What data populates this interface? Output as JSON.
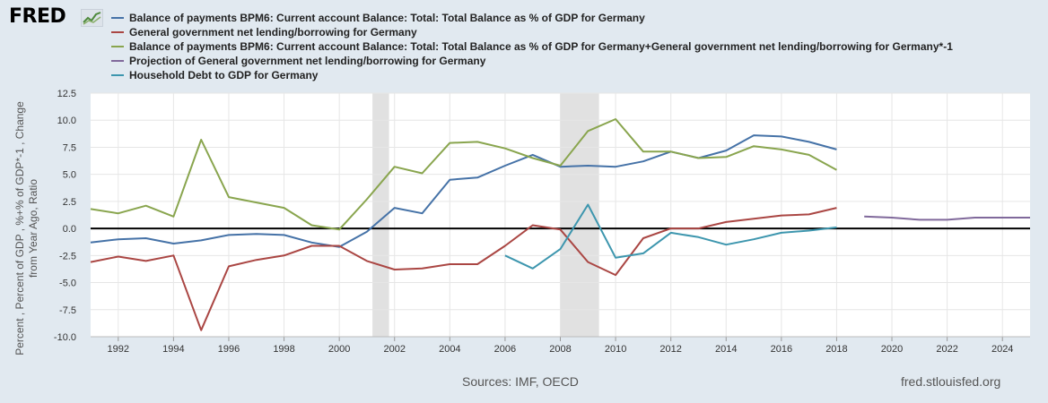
{
  "logo": {
    "text": "FRED"
  },
  "sources": "Sources: IMF, OECD",
  "site": "fred.stlouisfed.org",
  "chart_data": {
    "type": "line",
    "ylabel": "Percent , Percent of GDP , %+% of GDP*-1 , Change from Year Ago, Ratio",
    "xlim": [
      1991,
      2025
    ],
    "ylim": [
      -10.0,
      12.5
    ],
    "yticks": [
      12.5,
      10.0,
      7.5,
      5.0,
      2.5,
      0.0,
      -2.5,
      -5.0,
      -7.5,
      -10.0
    ],
    "ytick_labels": [
      "12.5",
      "10.0",
      "7.5",
      "5.0",
      "2.5",
      "0.0",
      "-2.5",
      "-5.0",
      "-7.5",
      "-10.0"
    ],
    "xticks": [
      1992,
      1994,
      1996,
      1998,
      2000,
      2002,
      2004,
      2006,
      2008,
      2010,
      2012,
      2014,
      2016,
      2018,
      2020,
      2022,
      2024
    ],
    "xtick_labels": [
      "1992",
      "1994",
      "1996",
      "1998",
      "2000",
      "2002",
      "2004",
      "2006",
      "2008",
      "2010",
      "2012",
      "2014",
      "2016",
      "2018",
      "2020",
      "2022",
      "2024"
    ],
    "recessions": [
      [
        2001.2,
        2001.8
      ],
      [
        2008.0,
        2009.4
      ]
    ],
    "series": [
      {
        "name": "Balance of payments BPM6: Current account Balance: Total: Total Balance as % of GDP for Germany",
        "color": "#4572a7",
        "x": [
          1991,
          1992,
          1993,
          1994,
          1995,
          1996,
          1997,
          1998,
          1999,
          2000,
          2001,
          2002,
          2003,
          2004,
          2005,
          2006,
          2007,
          2008,
          2009,
          2010,
          2011,
          2012,
          2013,
          2014,
          2015,
          2016,
          2017,
          2018
        ],
        "y": [
          -1.3,
          -1.0,
          -0.9,
          -1.4,
          -1.1,
          -0.6,
          -0.5,
          -0.6,
          -1.3,
          -1.7,
          -0.3,
          1.9,
          1.4,
          4.5,
          4.7,
          5.8,
          6.8,
          5.7,
          5.8,
          5.7,
          6.2,
          7.1,
          6.5,
          7.2,
          8.6,
          8.5,
          8.0,
          7.3
        ]
      },
      {
        "name": "General government net lending/borrowing for Germany",
        "color": "#aa4643",
        "x": [
          1991,
          1992,
          1993,
          1994,
          1995,
          1996,
          1997,
          1998,
          1999,
          2000,
          2001,
          2002,
          2003,
          2004,
          2005,
          2006,
          2007,
          2008,
          2009,
          2010,
          2011,
          2012,
          2013,
          2014,
          2015,
          2016,
          2017,
          2018
        ],
        "y": [
          -3.1,
          -2.6,
          -3.0,
          -2.5,
          -9.4,
          -3.5,
          -2.9,
          -2.5,
          -1.6,
          -1.6,
          -3.0,
          -3.8,
          -3.7,
          -3.3,
          -3.3,
          -1.6,
          0.3,
          -0.1,
          -3.1,
          -4.3,
          -0.9,
          0.0,
          0.0,
          0.6,
          0.9,
          1.2,
          1.3,
          1.9
        ]
      },
      {
        "name": "Balance of payments BPM6: Current account Balance: Total: Total Balance as % of GDP for Germany+General government net lending/borrowing for Germany*-1",
        "color": "#89a54e",
        "x": [
          1991,
          1992,
          1993,
          1994,
          1995,
          1996,
          1997,
          1998,
          1999,
          2000,
          2001,
          2002,
          2003,
          2004,
          2005,
          2006,
          2007,
          2008,
          2009,
          2010,
          2011,
          2012,
          2013,
          2014,
          2015,
          2016,
          2017,
          2018
        ],
        "y": [
          1.8,
          1.4,
          2.1,
          1.1,
          8.2,
          2.9,
          2.4,
          1.9,
          0.3,
          -0.1,
          2.7,
          5.7,
          5.1,
          7.9,
          8.0,
          7.4,
          6.5,
          5.8,
          9.0,
          10.1,
          7.1,
          7.1,
          6.5,
          6.6,
          7.6,
          7.3,
          6.8,
          5.4
        ]
      },
      {
        "name": "Projection of General government net lending/borrowing for Germany",
        "color": "#80699b",
        "x": [
          2019,
          2020,
          2021,
          2022,
          2023,
          2024,
          2025
        ],
        "y": [
          1.1,
          1.0,
          0.8,
          0.8,
          1.0,
          1.0,
          1.0
        ]
      },
      {
        "name": "Household Debt to GDP for Germany",
        "color": "#3d96ae",
        "x": [
          2006,
          2007,
          2008,
          2009,
          2010,
          2011,
          2012,
          2013,
          2014,
          2015,
          2016,
          2017,
          2018
        ],
        "y": [
          -2.5,
          -3.7,
          -1.9,
          2.2,
          -2.7,
          -2.3,
          -0.4,
          -0.8,
          -1.5,
          -1.0,
          -0.4,
          -0.2,
          0.1
        ]
      }
    ]
  }
}
